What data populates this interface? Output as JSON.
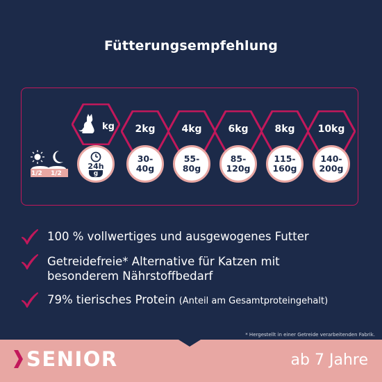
{
  "title": "Fütterungsempfehlung",
  "colors": {
    "background": "#1c2a49",
    "accent": "#c2185b",
    "pink": "#e8a7a3"
  },
  "table": {
    "cat_icon": "cat-icon",
    "cat_unit": "kg",
    "clock_label": "24h",
    "unit_g": "g",
    "portions": [
      "1/2",
      "1/2"
    ],
    "columns": [
      {
        "weight": "2kg",
        "amount": "30-\n40g"
      },
      {
        "weight": "4kg",
        "amount": "55-\n80g"
      },
      {
        "weight": "6kg",
        "amount": "85-\n120g"
      },
      {
        "weight": "8kg",
        "amount": "115-\n160g"
      },
      {
        "weight": "10kg",
        "amount": "140-\n200g"
      }
    ]
  },
  "benefits": [
    {
      "text": "100 % vollwertiges und ausgewogenes Futter"
    },
    {
      "text": "Getreidefreie* Alternative für Katzen mit",
      "text2": "besonderem Nährstoffbedarf"
    },
    {
      "text": "79% tierisches Protein",
      "small": "(Anteil am Gesamtproteingehalt)"
    }
  ],
  "footnote": "* Hergestellt in einer Getreide verarbeitenden Fabrik.",
  "banner": {
    "label": "SENIOR",
    "age": "ab 7 Jahre"
  }
}
